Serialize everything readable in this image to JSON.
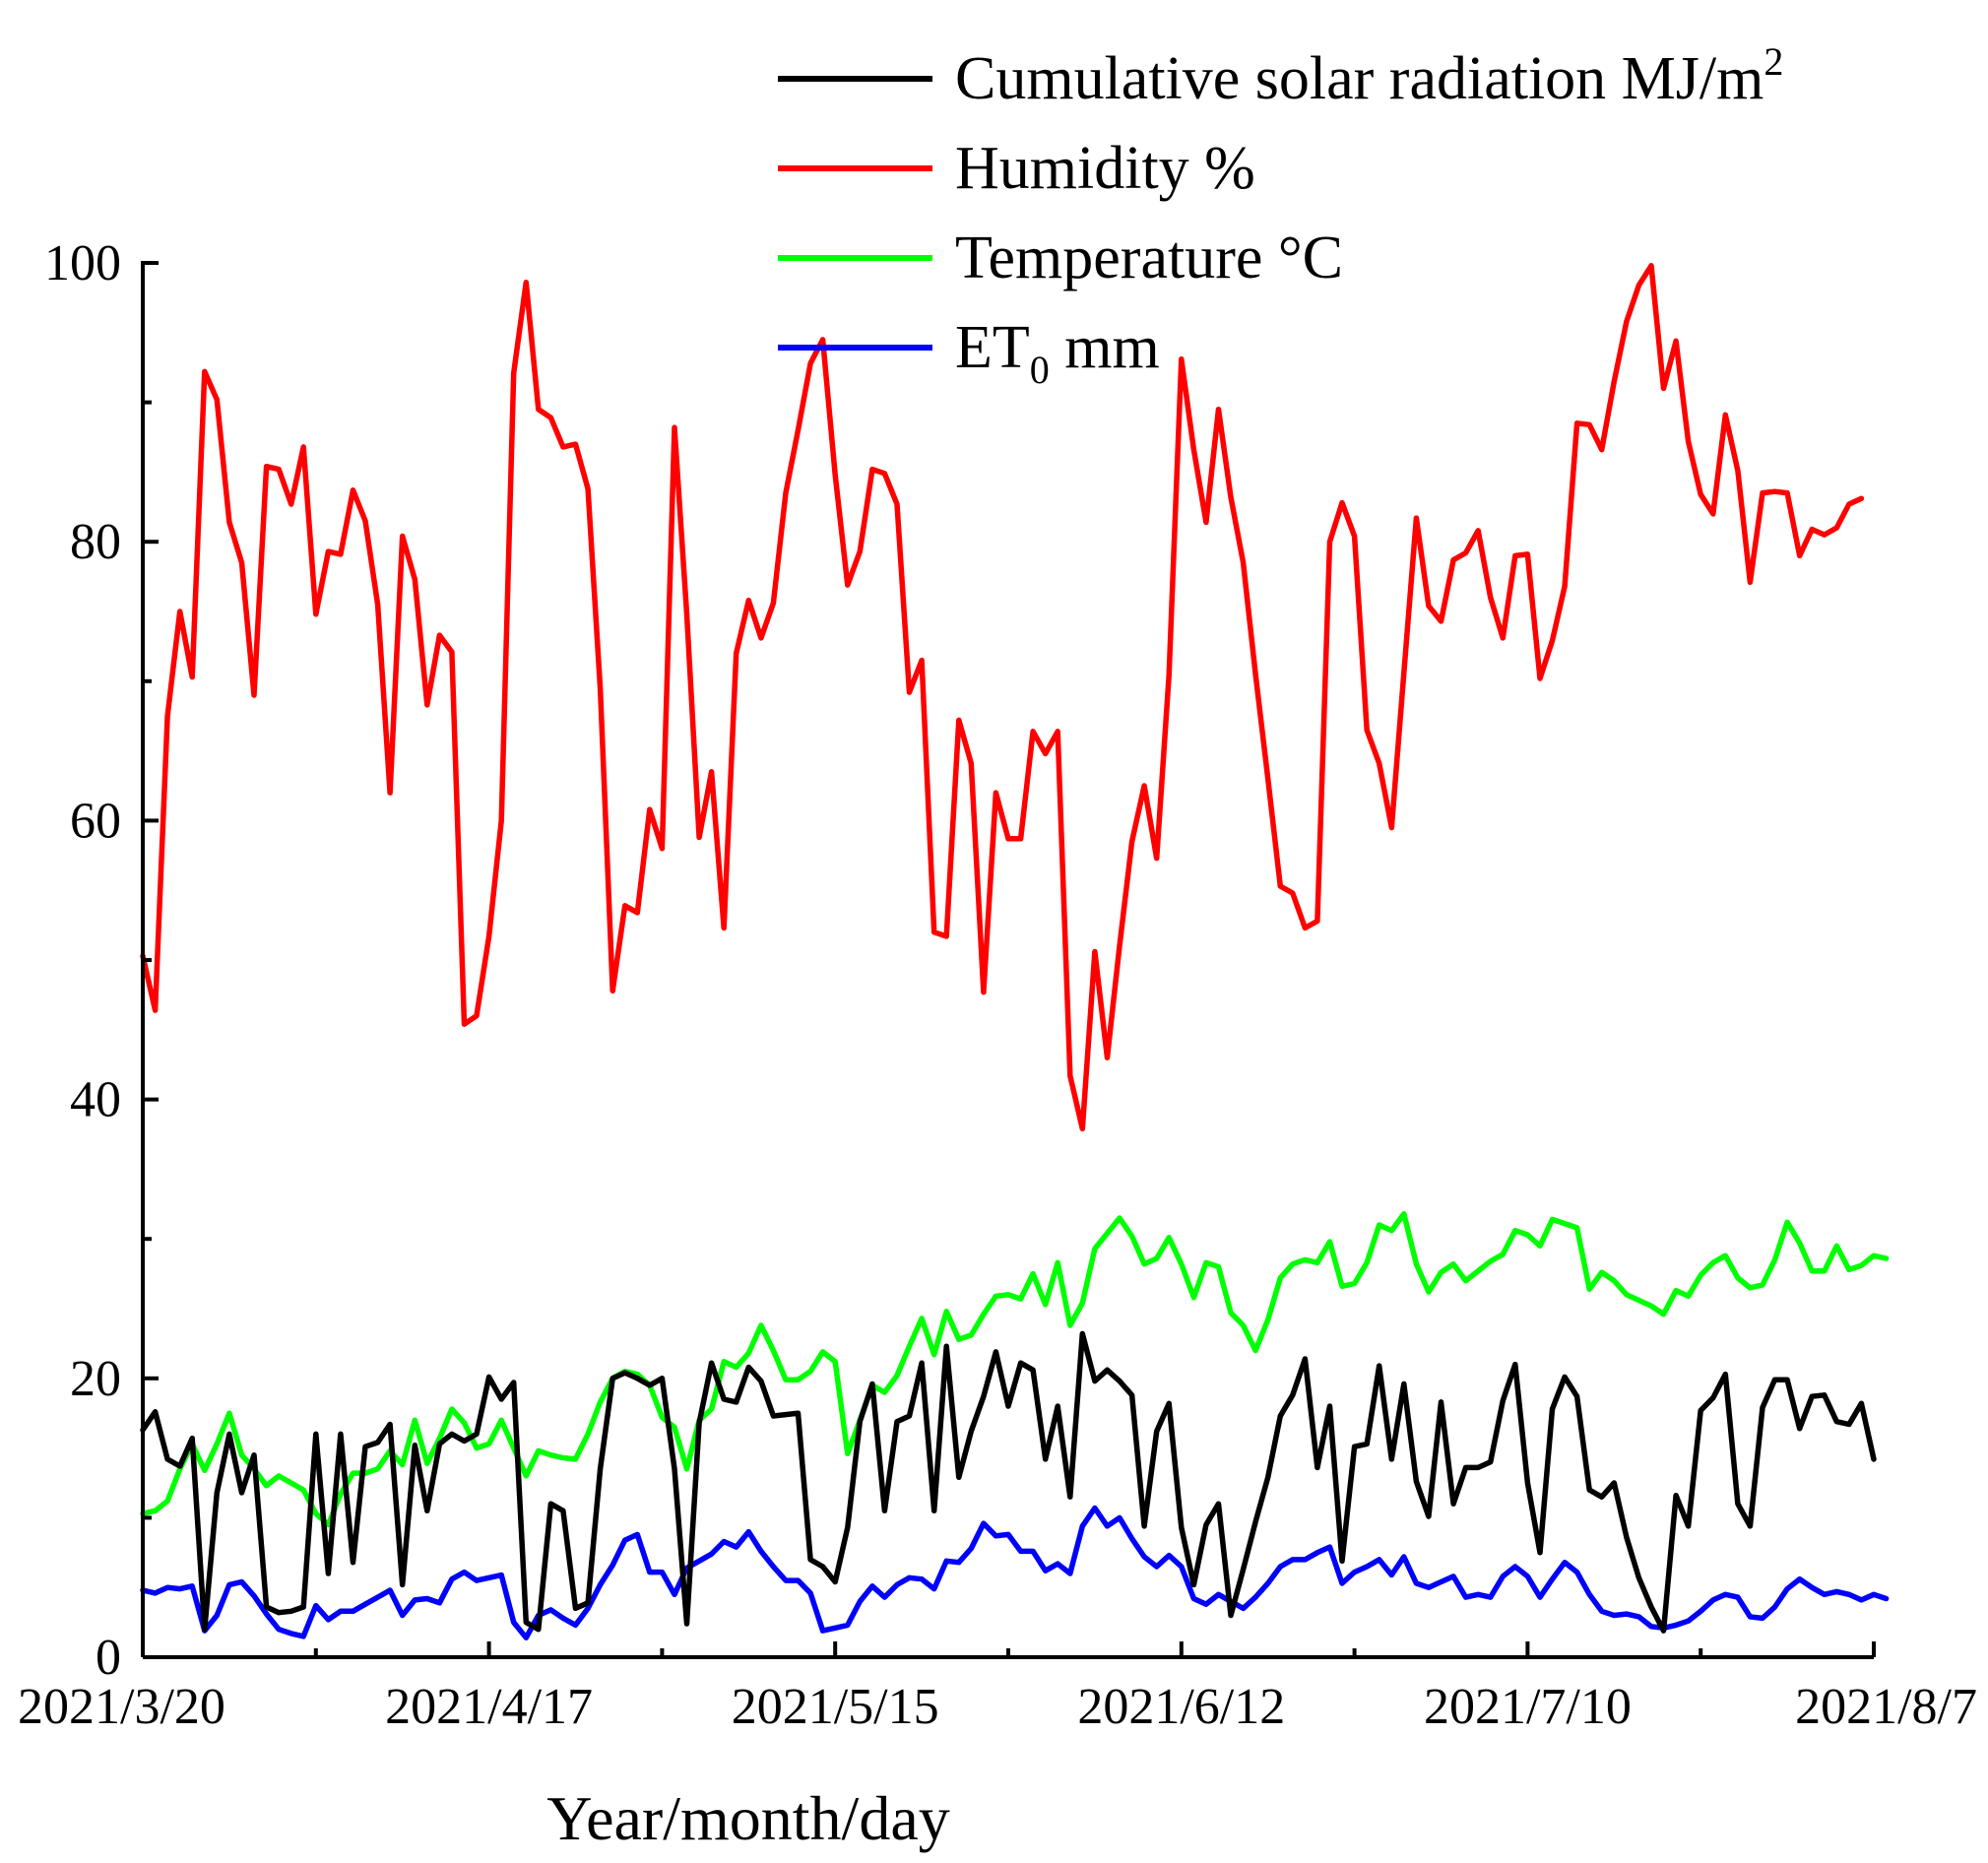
{
  "chart_data": {
    "type": "line",
    "title": "",
    "xlabel": "Year/month/day",
    "ylabel": "",
    "ylim": [
      0,
      100
    ],
    "yticks": [
      0,
      20,
      40,
      60,
      80,
      100
    ],
    "x_tick_labels": [
      "2021/3/20",
      "2021/4/17",
      "2021/5/15",
      "2021/6/12",
      "2021/7/10",
      "2021/8/7"
    ],
    "x_range_days": [
      0,
      140
    ],
    "legend_position": "top-right",
    "series": [
      {
        "name": "Cumulative solar radiation MJ/m",
        "name_superscript": "2",
        "color": "#000000",
        "values": [
          16.3,
          17.6,
          14.2,
          13.7,
          15.7,
          2.0,
          11.8,
          16.0,
          11.8,
          14.5,
          3.6,
          3.2,
          3.3,
          3.6,
          16.0,
          6.0,
          16.0,
          6.8,
          15.1,
          15.4,
          16.7,
          5.2,
          15.2,
          10.5,
          15.3,
          16.0,
          15.5,
          16.0,
          20.1,
          18.5,
          19.7,
          2.5,
          2.0,
          11.0,
          10.5,
          3.5,
          3.9,
          13.5,
          20.0,
          20.4,
          20.0,
          19.5,
          20.0,
          13.5,
          2.4,
          16.8,
          21.1,
          18.5,
          18.3,
          20.8,
          19.8,
          17.3,
          17.4,
          17.5,
          7.0,
          6.5,
          5.4,
          9.3,
          16.9,
          19.6,
          10.5,
          16.9,
          17.3,
          21.1,
          10.5,
          22.3,
          12.9,
          16.2,
          18.7,
          21.9,
          18.0,
          21.1,
          20.6,
          14.2,
          18.0,
          11.5,
          23.2,
          19.8,
          20.6,
          19.8,
          18.8,
          9.4,
          16.2,
          18.2,
          9.3,
          5.2,
          9.5,
          11.0,
          3.0,
          6.3,
          9.7,
          12.9,
          17.3,
          18.8,
          21.4,
          13.6,
          18.0,
          6.9,
          15.1,
          15.3,
          20.9,
          14.2,
          19.6,
          12.6,
          10.1,
          18.3,
          11.0,
          13.6,
          13.6,
          14.0,
          18.4,
          21.0,
          12.5,
          7.5,
          17.8,
          20.1,
          18.7,
          12.0,
          11.5,
          12.5,
          8.6,
          5.7,
          3.6,
          1.9,
          11.6,
          9.4,
          17.7,
          18.6,
          20.3,
          11.0,
          9.4,
          17.9,
          19.9,
          19.9,
          16.4,
          18.7,
          18.8,
          16.9,
          16.7,
          18.2,
          14.2
        ]
      },
      {
        "name": "Humidity %",
        "color": "#ff0000",
        "values": [
          50.3,
          46.4,
          67.5,
          75.0,
          70.3,
          92.2,
          90.2,
          81.4,
          78.5,
          69.0,
          85.4,
          85.2,
          82.7,
          86.8,
          74.8,
          79.3,
          79.1,
          83.7,
          81.5,
          75.5,
          62.0,
          80.4,
          77.3,
          68.3,
          73.3,
          72.1,
          45.4,
          46.0,
          51.7,
          60.0,
          92.1,
          98.6,
          89.5,
          88.9,
          86.8,
          87.0,
          83.8,
          69.5,
          47.8,
          53.9,
          53.4,
          60.8,
          58.0,
          88.2,
          74.8,
          58.8,
          63.5,
          52.3,
          72.0,
          75.8,
          73.1,
          75.6,
          83.5,
          88.0,
          92.8,
          94.5,
          84.8,
          76.9,
          79.3,
          85.2,
          84.9,
          82.7,
          69.2,
          71.5,
          52.0,
          51.7,
          67.2,
          64.1,
          47.7,
          62.0,
          58.7,
          58.7,
          66.4,
          64.8,
          66.4,
          41.7,
          37.9,
          50.6,
          43.0,
          51.0,
          58.5,
          62.5,
          57.3,
          70.4,
          93.1,
          86.6,
          81.4,
          89.5,
          83.2,
          78.5,
          70.5,
          63.0,
          55.3,
          54.8,
          52.3,
          52.8,
          80.0,
          82.8,
          80.4,
          66.5,
          64.1,
          59.5,
          70.6,
          81.7,
          75.4,
          74.3,
          78.7,
          79.2,
          80.8,
          76.0,
          73.1,
          79.0,
          79.1,
          70.2,
          72.9,
          76.8,
          88.5,
          88.4,
          86.6,
          91.5,
          95.8,
          98.4,
          99.8,
          91.0,
          94.4,
          87.2,
          83.4,
          82.0,
          89.1,
          85.1,
          77.1,
          83.5,
          83.6,
          83.5,
          79.0,
          80.9,
          80.5,
          81.0,
          82.7,
          83.1
        ]
      },
      {
        "name": "Temperature °C",
        "color": "#00ff00",
        "values": [
          10.3,
          10.5,
          11.2,
          13.5,
          15.3,
          13.4,
          15.3,
          17.5,
          14.5,
          13.5,
          12.3,
          13.0,
          12.5,
          12.0,
          10.3,
          9.5,
          11.7,
          13.2,
          13.2,
          13.5,
          14.8,
          13.8,
          17.0,
          13.9,
          15.7,
          17.8,
          16.8,
          15.0,
          15.3,
          17.0,
          15.0,
          13.0,
          14.8,
          14.5,
          14.3,
          14.2,
          16.0,
          18.3,
          20.0,
          20.5,
          20.3,
          19.5,
          17.2,
          16.5,
          13.5,
          17.0,
          17.8,
          21.2,
          20.8,
          21.8,
          23.8,
          22.0,
          19.9,
          19.9,
          20.5,
          21.9,
          21.2,
          14.6,
          17.0,
          19.5,
          19.0,
          20.2,
          22.3,
          24.3,
          21.7,
          24.8,
          22.8,
          23.1,
          24.6,
          25.9,
          26.0,
          25.7,
          27.5,
          25.3,
          28.3,
          23.8,
          25.4,
          29.3,
          30.4,
          31.5,
          30.2,
          28.2,
          28.6,
          30.1,
          28.2,
          25.8,
          28.3,
          28.0,
          24.7,
          23.8,
          22.0,
          24.2,
          27.2,
          28.2,
          28.5,
          28.3,
          29.8,
          26.6,
          26.8,
          28.3,
          31.0,
          30.6,
          31.8,
          28.2,
          26.2,
          27.6,
          28.2,
          27.0,
          27.7,
          28.4,
          28.9,
          30.6,
          30.3,
          29.5,
          31.4,
          31.1,
          30.8,
          26.4,
          27.6,
          27.0,
          26.0,
          25.6,
          25.2,
          24.6,
          26.3,
          25.9,
          27.4,
          28.3,
          28.8,
          27.2,
          26.5,
          26.7,
          28.5,
          31.2,
          29.7,
          27.7,
          27.7,
          29.5,
          27.8,
          28.1,
          28.8,
          28.6
        ]
      },
      {
        "name": "ET",
        "name_subscript": "0",
        "name_suffix": " mm",
        "color": "#0000ff",
        "values": [
          4.8,
          4.6,
          5.0,
          4.9,
          5.1,
          1.9,
          3.0,
          5.2,
          5.4,
          4.4,
          3.1,
          2.0,
          1.7,
          1.5,
          3.7,
          2.7,
          3.3,
          3.3,
          3.8,
          4.3,
          4.8,
          3.0,
          4.1,
          4.2,
          3.9,
          5.6,
          6.1,
          5.5,
          5.7,
          5.9,
          2.5,
          1.4,
          3.0,
          3.4,
          2.8,
          2.3,
          3.5,
          5.2,
          6.6,
          8.4,
          8.8,
          6.1,
          6.1,
          4.5,
          6.4,
          6.9,
          7.4,
          8.3,
          7.9,
          9.0,
          7.6,
          6.5,
          5.5,
          5.5,
          4.6,
          1.9,
          2.1,
          2.3,
          4.0,
          5.1,
          4.3,
          5.2,
          5.7,
          5.6,
          4.9,
          6.9,
          6.8,
          7.8,
          9.6,
          8.7,
          8.8,
          7.6,
          7.6,
          6.2,
          6.7,
          6.0,
          9.4,
          10.7,
          9.4,
          10.0,
          8.5,
          7.2,
          6.5,
          7.3,
          6.5,
          4.2,
          3.8,
          4.5,
          4.0,
          3.5,
          4.3,
          5.3,
          6.5,
          7.0,
          7.0,
          7.5,
          7.9,
          5.3,
          6.1,
          6.5,
          7.0,
          5.9,
          7.2,
          5.3,
          5.0,
          5.4,
          5.8,
          4.3,
          4.5,
          4.3,
          5.8,
          6.5,
          5.8,
          4.3,
          5.6,
          6.8,
          6.1,
          4.5,
          3.3,
          3.0,
          3.1,
          2.9,
          2.2,
          2.1,
          2.3,
          2.6,
          3.3,
          4.1,
          4.5,
          4.3,
          2.9,
          2.8,
          3.6,
          4.9,
          5.6,
          5.0,
          4.5,
          4.7,
          4.5,
          4.1,
          4.5,
          4.2
        ]
      }
    ]
  }
}
